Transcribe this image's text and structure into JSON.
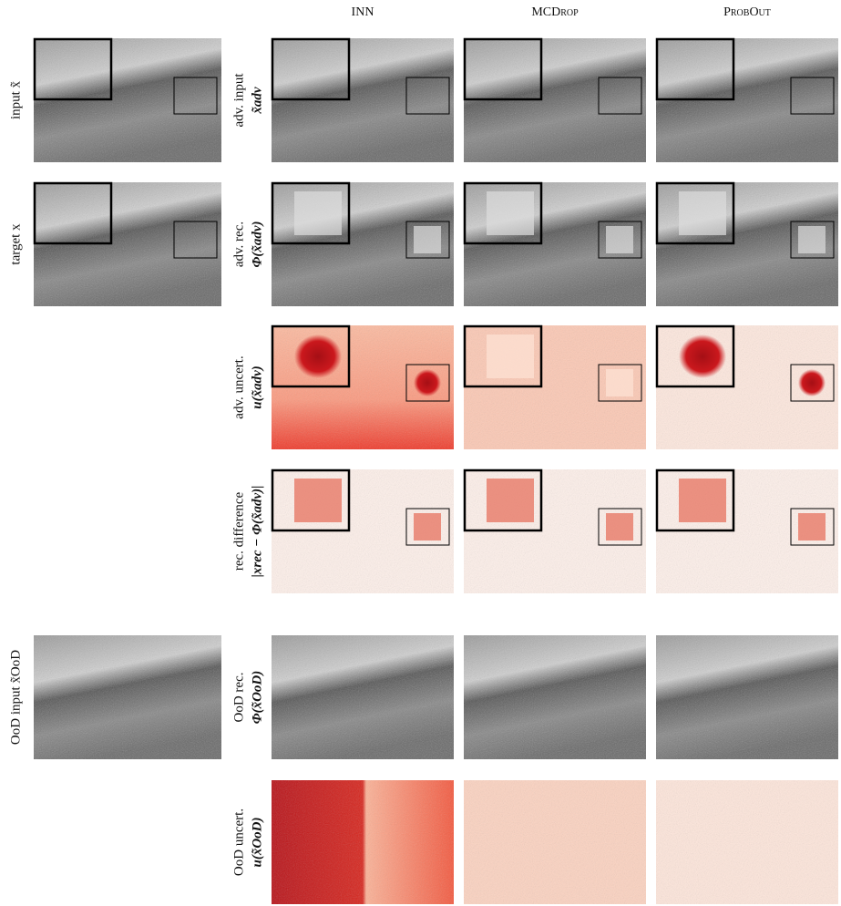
{
  "column_headers": [
    "INN",
    "MCDrop",
    "ProbOut"
  ],
  "left_labels": [
    "input x̃",
    "target x",
    "OoD input x̃OoD"
  ],
  "row_labels": [
    [
      "adv. input",
      "x̃adv"
    ],
    [
      "adv. rec.",
      "Φ(x̃adv)"
    ],
    [
      "adv. uncert.",
      "u(x̃adv)"
    ],
    [
      "rec. difference",
      "|xrec − Φ(x̃adv)|"
    ],
    [
      "OoD rec.",
      "Φ(x̃OoD)"
    ],
    [
      "OoD uncert.",
      "u(x̃OoD)"
    ]
  ]
}
